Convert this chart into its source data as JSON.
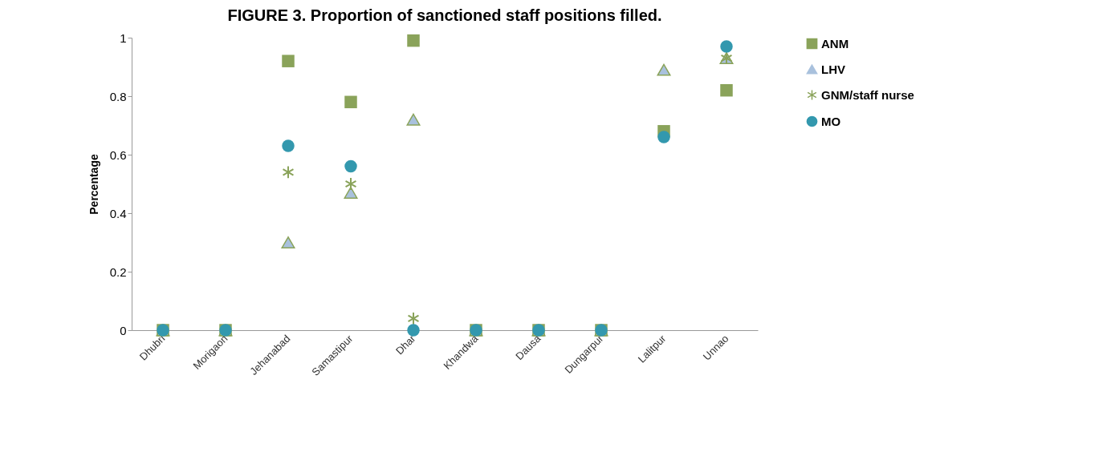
{
  "chart_data": {
    "type": "scatter",
    "title": "FIGURE 3. Proportion of sanctioned staff positions filled.",
    "ylabel": "Percentage",
    "categories": [
      "Dhubri",
      "Morigaon",
      "Jehanabad",
      "Samastipur",
      "Dhar",
      "Khandwa",
      "Dausa",
      "Dungarpur",
      "Lalitpur",
      "Unnao"
    ],
    "series": [
      {
        "name": "ANM",
        "color": "#8aa35a",
        "marker": "square",
        "values": [
          0,
          0,
          0.92,
          0.78,
          0.99,
          0,
          0,
          0,
          0.68,
          0.82
        ]
      },
      {
        "name": "LHV",
        "color": "#a9c1dd",
        "marker": "triangle",
        "values": [
          0,
          0,
          0.3,
          0.47,
          0.72,
          0,
          0,
          0,
          0.89,
          0.93
        ]
      },
      {
        "name": "GNM/staff nurse",
        "color": "#8aa35a",
        "marker": "cross",
        "values": [
          null,
          null,
          0.54,
          0.5,
          0.04,
          null,
          null,
          null,
          null,
          0.93
        ]
      },
      {
        "name": "MO",
        "color": "#3398ae",
        "marker": "circle",
        "values": [
          0,
          0,
          0.63,
          0.56,
          0,
          0,
          0,
          0,
          0.66,
          0.97
        ]
      }
    ],
    "ylim": [
      0,
      1
    ],
    "yticks": [
      0,
      0.2,
      0.4,
      0.6,
      0.8,
      1
    ],
    "grid": false,
    "legend": "right"
  }
}
